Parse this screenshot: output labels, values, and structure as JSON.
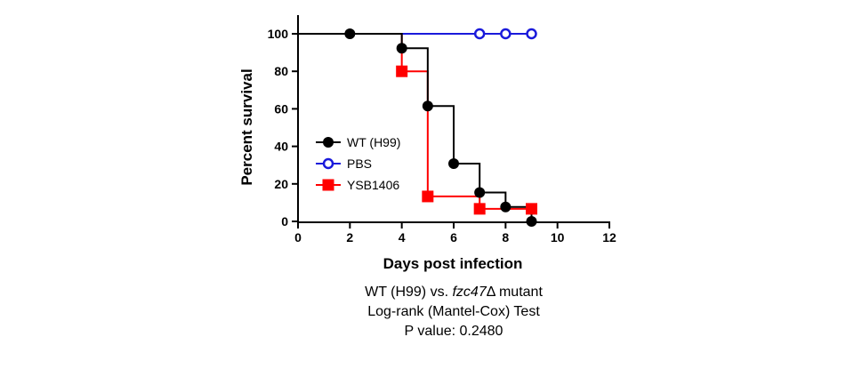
{
  "chart_data": {
    "type": "line",
    "step": true,
    "xlabel": "Days post infection",
    "ylabel": "Percent survival",
    "xlim": [
      0,
      12
    ],
    "ylim": [
      0,
      100
    ],
    "xticks": [
      0,
      2,
      4,
      6,
      8,
      10,
      12
    ],
    "yticks": [
      0,
      20,
      40,
      60,
      80,
      100
    ],
    "grid": false,
    "legend_position": "middle-left",
    "series": [
      {
        "name": "WT (H99)",
        "color": "#000000",
        "marker": "filled-circle",
        "x": [
          2,
          4,
          5,
          6,
          7,
          8,
          9
        ],
        "y": [
          100,
          92.3,
          61.5,
          30.8,
          15.4,
          7.7,
          0
        ],
        "step_x": [
          0,
          4,
          4,
          5,
          5,
          6,
          6,
          7,
          7,
          8,
          8,
          9,
          9
        ],
        "step_y": [
          100,
          100,
          92.3,
          92.3,
          61.5,
          61.5,
          30.8,
          30.8,
          15.4,
          15.4,
          7.7,
          7.7,
          0
        ]
      },
      {
        "name": "PBS",
        "color": "#1a1adb",
        "marker": "open-circle",
        "x": [
          7,
          8,
          9
        ],
        "y": [
          100,
          100,
          100
        ],
        "step_x": [
          4,
          9
        ],
        "step_y": [
          100,
          100
        ]
      },
      {
        "name": "YSB1406",
        "color": "#ff0000",
        "marker": "filled-square",
        "x": [
          4,
          5,
          7,
          9
        ],
        "y": [
          80,
          13.3,
          6.7,
          6.7
        ],
        "step_x": [
          4,
          4,
          5,
          5,
          7,
          7,
          9
        ],
        "step_y": [
          100,
          80,
          80,
          13.3,
          13.3,
          6.7,
          6.7
        ]
      }
    ]
  },
  "caption": {
    "line1_prefix": "WT (H99) vs. ",
    "line1_italic": "fzc47",
    "line1_suffix": "Δ mutant",
    "line2": "Log-rank (Mantel-Cox) Test",
    "line3": "P value: 0.2480"
  }
}
